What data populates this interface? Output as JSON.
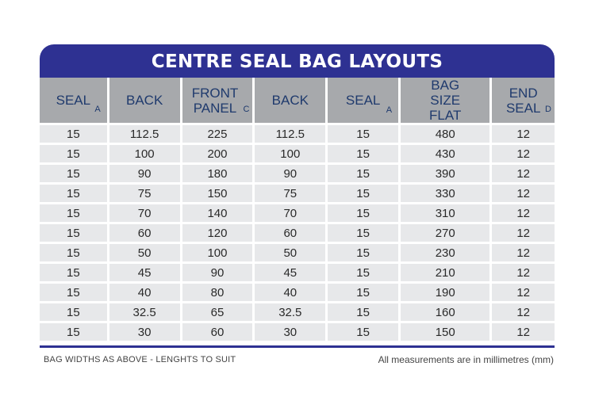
{
  "title": "CENTRE SEAL BAG LAYOUTS",
  "columns": [
    {
      "label": "SEAL",
      "sub": "A"
    },
    {
      "label": "BACK",
      "sub": ""
    },
    {
      "label": "FRONT PANEL",
      "sub": "C"
    },
    {
      "label": "BACK",
      "sub": ""
    },
    {
      "label": "SEAL",
      "sub": "A"
    },
    {
      "label": "BAG SIZE FLAT",
      "sub": ""
    },
    {
      "label": "END SEAL",
      "sub": "D"
    }
  ],
  "rows": [
    [
      "15",
      "112.5",
      "225",
      "112.5",
      "15",
      "480",
      "12"
    ],
    [
      "15",
      "100",
      "200",
      "100",
      "15",
      "430",
      "12"
    ],
    [
      "15",
      "90",
      "180",
      "90",
      "15",
      "390",
      "12"
    ],
    [
      "15",
      "75",
      "150",
      "75",
      "15",
      "330",
      "12"
    ],
    [
      "15",
      "70",
      "140",
      "70",
      "15",
      "310",
      "12"
    ],
    [
      "15",
      "60",
      "120",
      "60",
      "15",
      "270",
      "12"
    ],
    [
      "15",
      "50",
      "100",
      "50",
      "15",
      "230",
      "12"
    ],
    [
      "15",
      "45",
      "90",
      "45",
      "15",
      "210",
      "12"
    ],
    [
      "15",
      "40",
      "80",
      "40",
      "15",
      "190",
      "12"
    ],
    [
      "15",
      "32.5",
      "65",
      "32.5",
      "15",
      "160",
      "12"
    ],
    [
      "15",
      "30",
      "60",
      "30",
      "15",
      "150",
      "12"
    ]
  ],
  "footer": {
    "left": "BAG WIDTHS AS ABOVE - LENGHTS TO SUIT",
    "right": "All measurements are in millimetres (mm)"
  },
  "colors": {
    "title_bg": "#2e3192",
    "header_bg": "#a7a9ac",
    "header_text": "#1f3a6d",
    "cell_bg": "#e7e8ea"
  }
}
